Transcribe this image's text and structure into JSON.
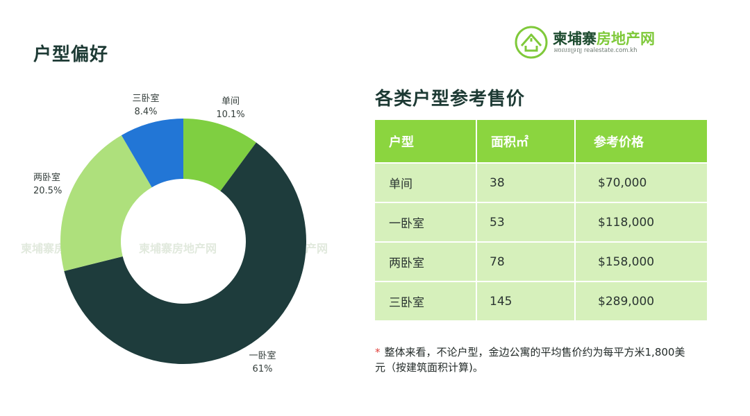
{
  "page": {
    "title": "户型偏好",
    "logo_cn": "柬埔寨房地产网",
    "logo_cn_dark": "柬埔寨",
    "logo_cn_light": "房地产网",
    "logo_sub": "អចលនទ្រព្យ realestate.com.kh",
    "watermark": "柬埔寨房地产网"
  },
  "chart_data": {
    "type": "pie",
    "style": "donut",
    "slices": [
      {
        "label": "单间",
        "value": 10.1,
        "display": "10.1%",
        "color": "#7fcf41"
      },
      {
        "label": "一卧室",
        "value": 61,
        "display": "61%",
        "color": "#1e3c3c"
      },
      {
        "label": "两卧室",
        "value": 20.5,
        "display": "20.5%",
        "color": "#aee07c"
      },
      {
        "label": "三卧室",
        "value": 8.4,
        "display": "8.4%",
        "color": "#2276d6"
      }
    ]
  },
  "table": {
    "title": "各类户型参考售价",
    "headers": [
      "户型",
      "面积㎡",
      "参考价格"
    ],
    "rows": [
      [
        "单间",
        "38",
        "$70,000"
      ],
      [
        "一卧室",
        "53",
        "$118,000"
      ],
      [
        "两卧室",
        "78",
        "$158,000"
      ],
      [
        "三卧室",
        "145",
        "$289,000"
      ]
    ]
  },
  "note": {
    "star": "*",
    "text": "整体来看，不论户型，金边公寓的平均售价约为每平方米1,800美元（按建筑面积计算)。"
  },
  "colors": {
    "header_green": "#8bd53f",
    "row_green": "#d6f0bb",
    "title_dark": "#1d3a34"
  }
}
